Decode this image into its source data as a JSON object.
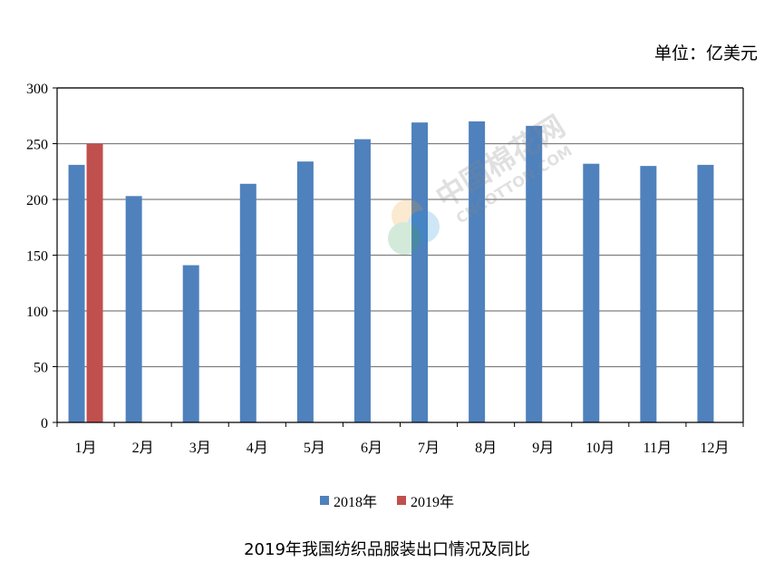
{
  "unit_label": "单位：亿美元",
  "watermark": {
    "line1": "中国棉花网",
    "line2": "CNCOTTON.COM"
  },
  "colors": {
    "series_2018": "#4F81BD",
    "series_2019": "#C0504D",
    "grid": "#7f7f7f",
    "axis": "#000000"
  },
  "chart_data": {
    "type": "bar",
    "title": "2019年我国纺织品服装出口情况及同比",
    "ylabel": "单位：亿美元",
    "ylim": [
      0,
      300
    ],
    "yticks": [
      0,
      50,
      100,
      150,
      200,
      250,
      300
    ],
    "categories": [
      "1月",
      "2月",
      "3月",
      "4月",
      "5月",
      "6月",
      "7月",
      "8月",
      "9月",
      "10月",
      "11月",
      "12月"
    ],
    "series": [
      {
        "name": "2018年",
        "color": "#4F81BD",
        "values": [
          231,
          203,
          141,
          214,
          234,
          254,
          269,
          270,
          266,
          232,
          230,
          231
        ]
      },
      {
        "name": "2019年",
        "color": "#C0504D",
        "values": [
          250,
          null,
          null,
          null,
          null,
          null,
          null,
          null,
          null,
          null,
          null,
          null
        ]
      }
    ],
    "grid": true,
    "legend_position": "bottom"
  }
}
